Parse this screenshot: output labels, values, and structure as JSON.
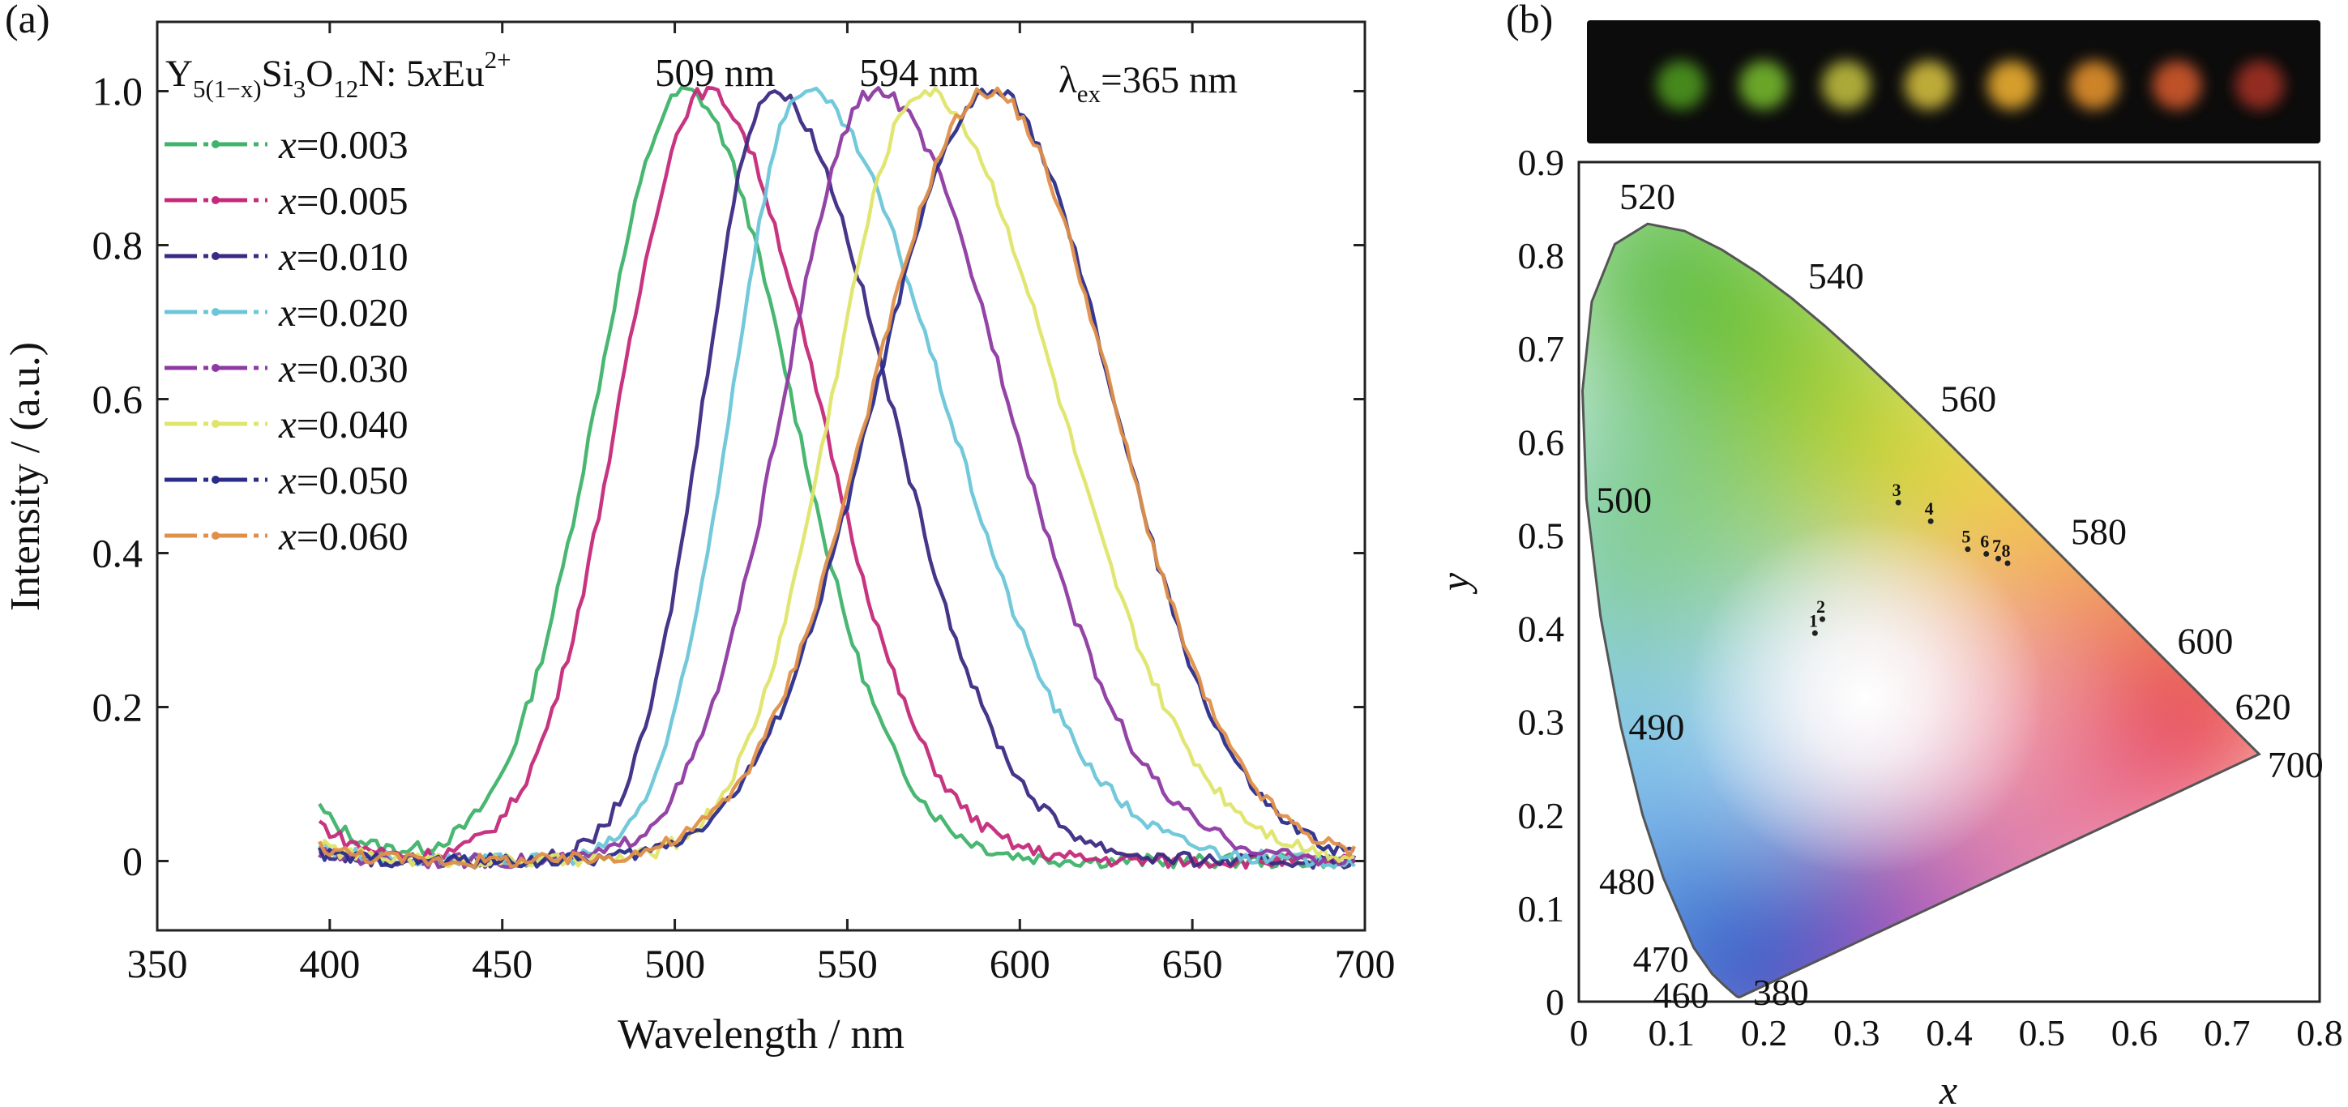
{
  "panel_a": {
    "label": "(a)",
    "compound": {
      "base": "Y",
      "sub1": "5(1−x)",
      "mid": "Si",
      "sub2": "3",
      "o": "O",
      "sub3": "12",
      "n": "N: 5",
      "xvar": "x",
      "eu": "Eu",
      "sup": "2+"
    },
    "peak1_label": "509 nm",
    "peak2_label": "594 nm",
    "excitation": {
      "lambda": "λ",
      "sub": "ex",
      "value": "=365 nm"
    },
    "xlabel": "Wavelength / nm",
    "ylabel": "Intensity / (a.u.)"
  },
  "panel_b": {
    "label": "(b)",
    "xlabel": "x",
    "ylabel": "y",
    "sample_colors": [
      "#4a8f1e",
      "#6fae2a",
      "#b4b23a",
      "#c7b43a",
      "#e0a52e",
      "#d88a2c",
      "#c8552a",
      "#9a2f22"
    ]
  },
  "chart_data": [
    {
      "type": "line",
      "ylabel": "Intensity / (a.u.)",
      "xlabel": "Wavelength / nm",
      "xlim": [
        350,
        700
      ],
      "ylim": [
        -0.09,
        1.09
      ],
      "xticks": [
        "350",
        "400",
        "450",
        "500",
        "550",
        "600",
        "650",
        "700"
      ],
      "yticks": [
        "0",
        "0.2",
        "0.4",
        "0.6",
        "0.8",
        "1.0"
      ],
      "grid": false,
      "legend": "top-left",
      "series": [
        {
          "name": "x=0.003",
          "color": "#3fb36a",
          "peak": 503,
          "wl": 60,
          "wr": 72,
          "start": 397,
          "end": 697,
          "y_start": 0.07
        },
        {
          "name": "x=0.005",
          "color": "#c42a7a",
          "peak": 509,
          "wl": 58,
          "wr": 76,
          "start": 397,
          "end": 697,
          "y_start": 0.05
        },
        {
          "name": "x=0.010",
          "color": "#3c2a82",
          "peak": 528,
          "wl": 46,
          "wr": 80,
          "start": 397,
          "end": 697,
          "y_start": 0.01
        },
        {
          "name": "x=0.020",
          "color": "#6cc6d8",
          "peak": 537,
          "wl": 48,
          "wr": 96,
          "start": 397,
          "end": 697,
          "y_start": 0.02
        },
        {
          "name": "x=0.030",
          "color": "#8e3aa2",
          "peak": 558,
          "wl": 62,
          "wr": 90,
          "start": 397,
          "end": 697,
          "y_start": 0.01
        },
        {
          "name": "x=0.040",
          "color": "#dfe56a",
          "peak": 572,
          "wl": 62,
          "wr": 92,
          "start": 397,
          "end": 697,
          "y_start": 0.02
        },
        {
          "name": "x=0.050",
          "color": "#2a2c8a",
          "peak": 592,
          "wl": 80,
          "wr": 82,
          "start": 397,
          "end": 697,
          "y_start": 0.01
        },
        {
          "name": "x=0.060",
          "color": "#e0904a",
          "peak": 591,
          "wl": 80,
          "wr": 84,
          "start": 397,
          "end": 697,
          "y_start": 0.02
        }
      ]
    },
    {
      "type": "scatter",
      "title": "",
      "xlabel": "x",
      "ylabel": "y",
      "xlim": [
        0,
        0.8
      ],
      "ylim": [
        0,
        0.9
      ],
      "xticks": [
        "0",
        "0.1",
        "0.2",
        "0.3",
        "0.4",
        "0.5",
        "0.6",
        "0.7",
        "0.8"
      ],
      "yticks": [
        "0",
        "0.1",
        "0.2",
        "0.3",
        "0.4",
        "0.5",
        "0.6",
        "0.7",
        "0.8",
        "0.9"
      ],
      "points": [
        {
          "label": "1",
          "x": 0.255,
          "y": 0.395
        },
        {
          "label": "2",
          "x": 0.263,
          "y": 0.41
        },
        {
          "label": "3",
          "x": 0.345,
          "y": 0.535
        },
        {
          "label": "4",
          "x": 0.38,
          "y": 0.515
        },
        {
          "label": "5",
          "x": 0.42,
          "y": 0.485
        },
        {
          "label": "6",
          "x": 0.44,
          "y": 0.48
        },
        {
          "label": "7",
          "x": 0.453,
          "y": 0.475
        },
        {
          "label": "8",
          "x": 0.463,
          "y": 0.47
        }
      ],
      "locus_labels": [
        {
          "text": "520",
          "x": 0.074,
          "y": 0.834
        },
        {
          "text": "540",
          "x": 0.23,
          "y": 0.754
        },
        {
          "text": "560",
          "x": 0.373,
          "y": 0.624
        },
        {
          "text": "580",
          "x": 0.512,
          "y": 0.487
        },
        {
          "text": "600",
          "x": 0.627,
          "y": 0.373
        },
        {
          "text": "620",
          "x": 0.691,
          "y": 0.308
        },
        {
          "text": "700",
          "x": 0.735,
          "y": 0.265
        },
        {
          "text": "500",
          "x": 0.008,
          "y": 0.538
        },
        {
          "text": "490",
          "x": 0.045,
          "y": 0.295
        },
        {
          "text": "480",
          "x": 0.091,
          "y": 0.133
        },
        {
          "text": "470",
          "x": 0.124,
          "y": 0.058
        },
        {
          "text": "460",
          "x": 0.144,
          "y": 0.03
        },
        {
          "text": "380",
          "x": 0.174,
          "y": 0.005
        }
      ],
      "locus": [
        [
          0.1741,
          0.005
        ],
        [
          0.1733,
          0.0048
        ],
        [
          0.1714,
          0.0051
        ],
        [
          0.1689,
          0.0069
        ],
        [
          0.1644,
          0.0109
        ],
        [
          0.1566,
          0.0177
        ],
        [
          0.144,
          0.0297
        ],
        [
          0.1241,
          0.0578
        ],
        [
          0.0913,
          0.1327
        ],
        [
          0.0687,
          0.2007
        ],
        [
          0.0454,
          0.295
        ],
        [
          0.0235,
          0.4127
        ],
        [
          0.0082,
          0.5384
        ],
        [
          0.0039,
          0.6548
        ],
        [
          0.0139,
          0.7502
        ],
        [
          0.0389,
          0.812
        ],
        [
          0.0743,
          0.8338
        ],
        [
          0.1142,
          0.8262
        ],
        [
          0.1547,
          0.8059
        ],
        [
          0.1929,
          0.7816
        ],
        [
          0.2296,
          0.7543
        ],
        [
          0.2658,
          0.7243
        ],
        [
          0.3016,
          0.6923
        ],
        [
          0.3373,
          0.6589
        ],
        [
          0.3731,
          0.6245
        ],
        [
          0.4087,
          0.5896
        ],
        [
          0.4441,
          0.5547
        ],
        [
          0.4788,
          0.5202
        ],
        [
          0.5125,
          0.4866
        ],
        [
          0.5448,
          0.4544
        ],
        [
          0.5752,
          0.4242
        ],
        [
          0.6029,
          0.3965
        ],
        [
          0.627,
          0.3725
        ],
        [
          0.6482,
          0.3514
        ],
        [
          0.6658,
          0.334
        ],
        [
          0.6801,
          0.3197
        ],
        [
          0.6915,
          0.3083
        ],
        [
          0.7006,
          0.2993
        ],
        [
          0.714,
          0.2859
        ],
        [
          0.7347,
          0.2653
        ]
      ]
    }
  ]
}
